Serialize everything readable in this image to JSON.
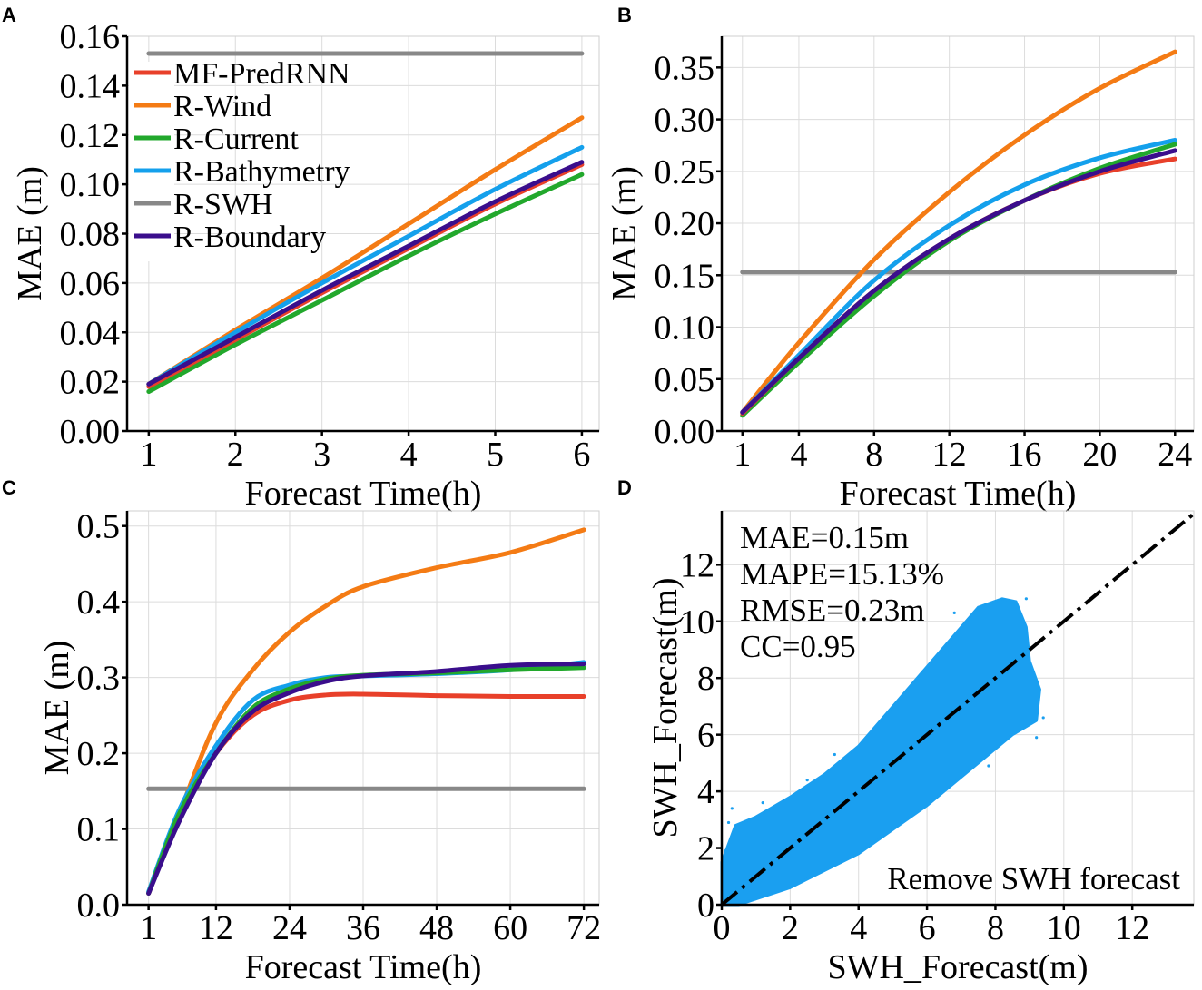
{
  "colors": {
    "MF-PredRNN": "#e8402a",
    "R-Wind": "#f47b14",
    "R-Current": "#22a82c",
    "R-Bathymetry": "#14a0ec",
    "R-SWH": "#888888",
    "R-Boundary": "#3a0e8c",
    "scatter": "#1a9ff0"
  },
  "chart_data": [
    {
      "panel": "A",
      "type": "line",
      "xlabel": "Forecast Time(h)",
      "ylabel": "MAE (m)",
      "xlim": [
        0.75,
        6.2
      ],
      "ylim": [
        0,
        0.16
      ],
      "xticks": [
        1,
        2,
        3,
        4,
        5,
        6
      ],
      "xtick_labels": [
        "1",
        "2",
        "3",
        "4",
        "5",
        "6"
      ],
      "yticks": [
        0,
        0.02,
        0.04,
        0.06,
        0.08,
        0.1,
        0.12,
        0.14,
        0.16
      ],
      "ytick_labels": [
        "0.00",
        "0.02",
        "0.04",
        "0.06",
        "0.08",
        "0.10",
        "0.12",
        "0.14",
        "0.16"
      ],
      "legend": {
        "placement": "top-left",
        "entries": [
          "MF-PredRNN",
          "R-Wind",
          "R-Current",
          "R-Bathymetry",
          "R-SWH",
          "R-Boundary"
        ]
      },
      "x": [
        1,
        2,
        3,
        4,
        5,
        6
      ],
      "series": [
        {
          "name": "R-SWH",
          "values": [
            0.153,
            0.153,
            0.153,
            0.153,
            0.153,
            0.153
          ]
        },
        {
          "name": "R-Wind",
          "values": [
            0.019,
            0.041,
            0.062,
            0.084,
            0.106,
            0.127
          ]
        },
        {
          "name": "R-Bathymetry",
          "values": [
            0.019,
            0.04,
            0.06,
            0.079,
            0.098,
            0.115
          ]
        },
        {
          "name": "R-Current",
          "values": [
            0.016,
            0.035,
            0.053,
            0.071,
            0.088,
            0.104
          ]
        },
        {
          "name": "MF-PredRNN",
          "values": [
            0.018,
            0.037,
            0.056,
            0.074,
            0.092,
            0.108
          ]
        },
        {
          "name": "R-Boundary",
          "values": [
            0.019,
            0.038,
            0.057,
            0.075,
            0.093,
            0.109
          ]
        }
      ]
    },
    {
      "panel": "B",
      "type": "line",
      "xlabel": "Forecast Time(h)",
      "ylabel": "MAE (m)",
      "xlim": [
        -0.1,
        25
      ],
      "ylim": [
        0,
        0.38
      ],
      "xticks": [
        1,
        4,
        8,
        12,
        16,
        20,
        24
      ],
      "xtick_labels": [
        "1",
        "4",
        "8",
        "12",
        "16",
        "20",
        "24"
      ],
      "yticks": [
        0,
        0.05,
        0.1,
        0.15,
        0.2,
        0.25,
        0.3,
        0.35
      ],
      "ytick_labels": [
        "0.00",
        "0.05",
        "0.10",
        "0.15",
        "0.20",
        "0.25",
        "0.30",
        "0.35"
      ],
      "x": [
        1,
        4,
        8,
        12,
        16,
        20,
        24
      ],
      "series": [
        {
          "name": "R-SWH",
          "values": [
            0.153,
            0.153,
            0.153,
            0.153,
            0.153,
            0.153,
            0.153
          ]
        },
        {
          "name": "R-Wind",
          "values": [
            0.018,
            0.085,
            0.165,
            0.23,
            0.285,
            0.33,
            0.365
          ]
        },
        {
          "name": "R-Bathymetry",
          "values": [
            0.018,
            0.073,
            0.145,
            0.198,
            0.237,
            0.263,
            0.28
          ]
        },
        {
          "name": "R-Current",
          "values": [
            0.015,
            0.066,
            0.13,
            0.183,
            0.222,
            0.253,
            0.276
          ]
        },
        {
          "name": "MF-PredRNN",
          "values": [
            0.017,
            0.07,
            0.135,
            0.185,
            0.222,
            0.248,
            0.262
          ]
        },
        {
          "name": "R-Boundary",
          "values": [
            0.018,
            0.07,
            0.135,
            0.185,
            0.222,
            0.25,
            0.27
          ]
        }
      ]
    },
    {
      "panel": "C",
      "type": "line",
      "xlabel": "Forecast Time(h)",
      "ylabel": "MAE (m)",
      "xlim": [
        -2.5,
        74.5
      ],
      "ylim": [
        0,
        0.52
      ],
      "xticks": [
        1,
        12,
        24,
        36,
        48,
        60,
        72
      ],
      "xtick_labels": [
        "1",
        "12",
        "24",
        "36",
        "48",
        "60",
        "72"
      ],
      "yticks": [
        0,
        0.1,
        0.2,
        0.3,
        0.4,
        0.5
      ],
      "ytick_labels": [
        "0.0",
        "0.1",
        "0.2",
        "0.3",
        "0.4",
        "0.5"
      ],
      "x": [
        1,
        6,
        12,
        18,
        24,
        30,
        36,
        48,
        60,
        72
      ],
      "series": [
        {
          "name": "R-SWH",
          "values": [
            0.153,
            0.153,
            0.153,
            0.153,
            0.153,
            0.153,
            0.153,
            0.153,
            0.153,
            0.153
          ]
        },
        {
          "name": "R-Wind",
          "values": [
            0.015,
            0.12,
            0.24,
            0.31,
            0.36,
            0.395,
            0.42,
            0.445,
            0.465,
            0.495
          ]
        },
        {
          "name": "MF-PredRNN",
          "values": [
            0.015,
            0.12,
            0.2,
            0.25,
            0.27,
            0.277,
            0.278,
            0.276,
            0.275,
            0.275
          ]
        },
        {
          "name": "R-Bathymetry",
          "values": [
            0.017,
            0.125,
            0.21,
            0.27,
            0.29,
            0.3,
            0.302,
            0.305,
            0.31,
            0.32
          ]
        },
        {
          "name": "R-Current",
          "values": [
            0.015,
            0.12,
            0.2,
            0.26,
            0.285,
            0.298,
            0.303,
            0.306,
            0.31,
            0.313
          ]
        },
        {
          "name": "R-Boundary",
          "values": [
            0.015,
            0.11,
            0.2,
            0.255,
            0.28,
            0.295,
            0.302,
            0.308,
            0.316,
            0.318
          ]
        }
      ]
    },
    {
      "panel": "D",
      "type": "scatter",
      "xlabel": "SWH_Forecast(m)",
      "ylabel": "SWH_Forecast(m)",
      "xlim": [
        0,
        13.8
      ],
      "ylim": [
        0,
        13.9
      ],
      "xticks": [
        0,
        2,
        4,
        6,
        8,
        10,
        12
      ],
      "xtick_labels": [
        "0",
        "2",
        "4",
        "6",
        "8",
        "10",
        "12"
      ],
      "yticks": [
        0,
        2,
        4,
        6,
        8,
        10,
        12
      ],
      "ytick_labels": [
        "0",
        "2",
        "4",
        "6",
        "8",
        "10",
        "12"
      ],
      "reference_line": {
        "style": "dash-dot",
        "slope": 1,
        "intercept": 0
      },
      "point_cloud_envelope": [
        [
          0,
          0
        ],
        [
          0.5,
          0
        ],
        [
          2,
          0.6
        ],
        [
          4,
          1.8
        ],
        [
          6,
          3.5
        ],
        [
          7,
          4.5
        ],
        [
          8.5,
          6
        ],
        [
          9.2,
          6.5
        ],
        [
          9.3,
          7.6
        ],
        [
          9,
          8.6
        ],
        [
          8.9,
          9.8
        ],
        [
          8.6,
          10.7
        ],
        [
          8.2,
          10.8
        ],
        [
          7.5,
          10.5
        ],
        [
          7,
          9.8
        ],
        [
          6,
          8.4
        ],
        [
          5,
          7
        ],
        [
          4,
          5.6
        ],
        [
          3,
          4.6
        ],
        [
          2,
          3.8
        ],
        [
          1,
          3.1
        ],
        [
          0.4,
          2.8
        ],
        [
          0,
          1.5
        ]
      ],
      "annotations": [
        "MAE=0.15m",
        "MAPE=15.13%",
        "RMSE=0.23m",
        "CC=0.95"
      ],
      "caption": "Remove SWH forecast"
    }
  ],
  "panel_labels": [
    "A",
    "B",
    "C",
    "D"
  ]
}
